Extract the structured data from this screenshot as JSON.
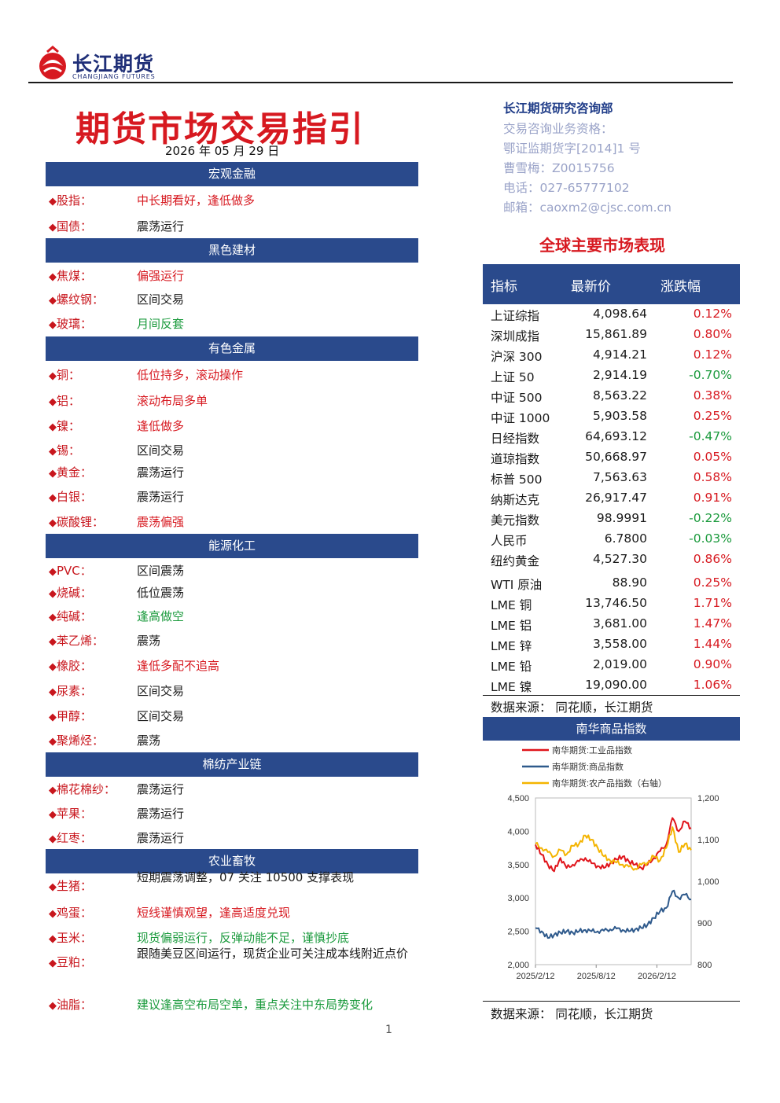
{
  "header": {
    "brand_cn": "长江期货",
    "brand_en": "CHANGJIANG FUTURES",
    "title": "期货市场交易指引",
    "date": "2026 年 05 月 29 日"
  },
  "contact": {
    "dept": "长江期货研究咨询部",
    "qual_label": "交易咨询业务资格：",
    "qual_no": "鄂证监期货字[2014]1 号",
    "analyst": "曹雪梅：Z0015756",
    "phone": "电话：027-65777102",
    "email": "邮箱：caoxm2@cjsc.com.cn"
  },
  "sections": [
    {
      "title": "宏观金融",
      "items": [
        {
          "name": "股指：",
          "value": "中长期看好，逢低做多",
          "color": "red"
        },
        {
          "name": "国债：",
          "value": "震荡运行",
          "color": "black"
        }
      ]
    },
    {
      "title": "黑色建材",
      "items": [
        {
          "name": "焦煤：",
          "value": "偏强运行",
          "color": "red"
        },
        {
          "name": "螺纹钢：",
          "value": "区间交易",
          "color": "black"
        },
        {
          "name": "玻璃：",
          "value": "月间反套",
          "color": "green"
        }
      ]
    },
    {
      "title": "有色金属",
      "items": [
        {
          "name": "铜：",
          "value": "低位持多，滚动操作",
          "color": "red"
        },
        {
          "name": "铝：",
          "value": "滚动布局多单",
          "color": "red"
        },
        {
          "name": "镍：",
          "value": "逢低做多",
          "color": "red"
        },
        {
          "name": "锡：",
          "value": "区间交易",
          "color": "black"
        },
        {
          "name": "黄金：",
          "value": "震荡运行",
          "color": "black"
        },
        {
          "name": "白银：",
          "value": "震荡运行",
          "color": "black"
        },
        {
          "name": "碳酸锂：",
          "value": "震荡偏强",
          "color": "red"
        }
      ]
    },
    {
      "title": "能源化工",
      "items": [
        {
          "name": "PVC：",
          "value": "区间震荡",
          "color": "black"
        },
        {
          "name": "烧碱：",
          "value": "低位震荡",
          "color": "black"
        },
        {
          "name": "纯碱：",
          "value": "逢高做空",
          "color": "green"
        },
        {
          "name": "苯乙烯：",
          "value": "震荡",
          "color": "black"
        },
        {
          "name": "橡胶：",
          "value": "逢低多配不追高",
          "color": "red"
        },
        {
          "name": "尿素：",
          "value": "区间交易",
          "color": "black"
        },
        {
          "name": "甲醇：",
          "value": "区间交易",
          "color": "black"
        },
        {
          "name": "聚烯烃：",
          "value": "震荡",
          "color": "black"
        }
      ]
    },
    {
      "title": "棉纺产业链",
      "items": [
        {
          "name": "棉花棉纱：",
          "value": "震荡运行",
          "color": "black"
        },
        {
          "name": "苹果：",
          "value": "震荡运行",
          "color": "black"
        },
        {
          "name": "红枣：",
          "value": "震荡运行",
          "color": "black"
        }
      ]
    },
    {
      "title": "农业畜牧",
      "items": [
        {
          "name": "生猪：",
          "value": "短期震荡调整，07 关注 10500 支撑表现",
          "color": "black"
        },
        {
          "name": "鸡蛋：",
          "value": "短线谨慎观望，逢高适度兑现",
          "color": "red"
        },
        {
          "name": "玉米：",
          "value": "现货偏弱运行，反弹动能不足，谨慎抄底",
          "color": "green"
        },
        {
          "name": "豆粕：",
          "value": "跟随美豆区间运行，现货企业可关注成本线附近点价",
          "color": "black"
        },
        {
          "name": "油脂：",
          "value": "建议逢高空布局空单，重点关注中东局势变化",
          "color": "green"
        }
      ]
    }
  ],
  "market": {
    "title": "全球主要市场表现",
    "headers": [
      "指标",
      "最新价",
      "涨跌幅"
    ],
    "rows": [
      {
        "name": "上证综指",
        "price": "4,098.64",
        "chg": "0.12%",
        "dir": "up"
      },
      {
        "name": "深圳成指",
        "price": "15,861.89",
        "chg": "0.80%",
        "dir": "up"
      },
      {
        "name": "沪深 300",
        "price": "4,914.21",
        "chg": "0.12%",
        "dir": "up"
      },
      {
        "name": "上证 50",
        "price": "2,914.19",
        "chg": "-0.70%",
        "dir": "down"
      },
      {
        "name": "中证 500",
        "price": "8,563.22",
        "chg": "0.38%",
        "dir": "up"
      },
      {
        "name": "中证 1000",
        "price": "5,903.58",
        "chg": "0.25%",
        "dir": "up"
      },
      {
        "name": "日经指数",
        "price": "64,693.12",
        "chg": "-0.47%",
        "dir": "down"
      },
      {
        "name": "道琼指数",
        "price": "50,668.97",
        "chg": "0.05%",
        "dir": "up"
      },
      {
        "name": "标普 500",
        "price": "7,563.63",
        "chg": "0.58%",
        "dir": "up"
      },
      {
        "name": "纳斯达克",
        "price": "26,917.47",
        "chg": "0.91%",
        "dir": "up"
      },
      {
        "name": "美元指数",
        "price": "98.9991",
        "chg": "-0.22%",
        "dir": "down"
      },
      {
        "name": "人民币",
        "price": "6.7800",
        "chg": "-0.03%",
        "dir": "down"
      },
      {
        "name": "纽约黄金",
        "price": "4,527.30",
        "chg": "0.86%",
        "dir": "up"
      },
      {
        "name": "WTI 原油",
        "price": "88.90",
        "chg": "0.25%",
        "dir": "up"
      },
      {
        "name": "LME 铜",
        "price": "13,746.50",
        "chg": "1.71%",
        "dir": "up"
      },
      {
        "name": "LME 铝",
        "price": "3,681.00",
        "chg": "1.47%",
        "dir": "up"
      },
      {
        "name": "LME 锌",
        "price": "3,558.00",
        "chg": "1.44%",
        "dir": "up"
      },
      {
        "name": "LME 铅",
        "price": "2,019.00",
        "chg": "0.90%",
        "dir": "up"
      },
      {
        "name": "LME 镍",
        "price": "19,090.00",
        "chg": "1.06%",
        "dir": "up"
      }
    ],
    "source": "数据来源：  同花顺，长江期货"
  },
  "nanhua": {
    "title": "南华商品指数",
    "source": "数据来源：  同花顺，长江期货"
  },
  "chart_data": {
    "type": "line",
    "x_ticks": [
      "2025/2/12",
      "2025/8/12",
      "2026/2/12"
    ],
    "y_left": {
      "ticks": [
        "4,500",
        "4,000",
        "3,500",
        "3,000",
        "2,500",
        "2,000"
      ],
      "range": [
        2000,
        4500
      ]
    },
    "y_right": {
      "ticks": [
        "1,200",
        "1,100",
        "1,000",
        "900",
        "800"
      ],
      "range": [
        800,
        1200
      ]
    },
    "series": [
      {
        "name": "南华期货:工业品指数",
        "axis": "left",
        "color": "#e0141b",
        "values": [
          3800,
          3650,
          3500,
          3400,
          3600,
          3450,
          3500,
          3550,
          3600,
          3520,
          3480,
          3450,
          3520,
          3580,
          3620,
          3550,
          3500,
          3450,
          3500,
          3600,
          3700,
          3800,
          4200,
          4000,
          4150,
          4050
        ]
      },
      {
        "name": "南华期货:商品指数",
        "axis": "left",
        "color": "#2f5a8c",
        "values": [
          2550,
          2500,
          2400,
          2450,
          2480,
          2500,
          2480,
          2500,
          2520,
          2500,
          2500,
          2510,
          2530,
          2540,
          2520,
          2500,
          2530,
          2550,
          2600,
          2700,
          2800,
          2850,
          3100,
          3000,
          3050,
          2980
        ]
      },
      {
        "name": "南华期货:农产品指数（右轴）",
        "axis": "right",
        "color": "#f4b400",
        "values": [
          1090,
          1080,
          1070,
          1060,
          1075,
          1065,
          1085,
          1090,
          1110,
          1100,
          1080,
          1060,
          1050,
          1045,
          1040,
          1035,
          1030,
          1040,
          1045,
          1060,
          1050,
          1080,
          1130,
          1070,
          1090,
          1075
        ]
      }
    ]
  },
  "footer": {
    "page": "1"
  }
}
